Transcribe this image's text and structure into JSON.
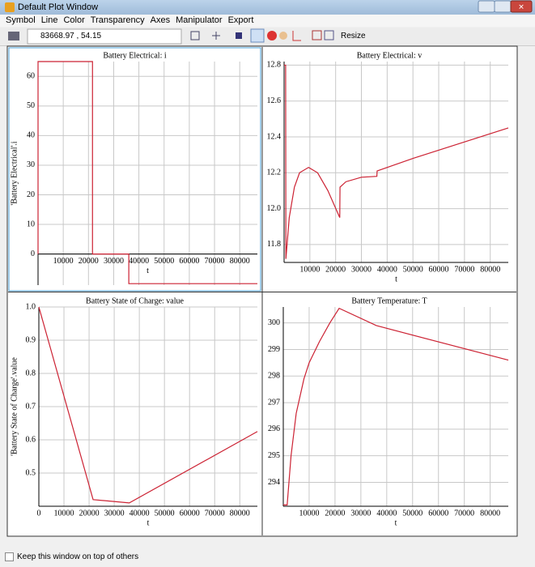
{
  "window": {
    "title": "Default Plot Window",
    "menu": [
      "Symbol",
      "Line",
      "Color",
      "Transparency",
      "Axes",
      "Manipulator",
      "Export"
    ],
    "coords": "83668.97 , 54.15",
    "resize": "Resize",
    "keep_on_top": "Keep this window on top of others"
  },
  "chart_data": [
    {
      "type": "line",
      "title": "Battery Electrical: i",
      "y_label": "'Battery Electrical'.i",
      "x_label": "t",
      "color": "#cc2233",
      "grid": true,
      "x": [
        0,
        0,
        21600,
        21600,
        36000,
        36000,
        87000
      ],
      "values": [
        0,
        65,
        65,
        0,
        0,
        -10,
        -10
      ],
      "xlim": [
        0,
        87000
      ],
      "ylim": [
        -10.5,
        65
      ],
      "xticks": [
        10000,
        20000,
        30000,
        40000,
        50000,
        60000,
        70000,
        80000
      ],
      "yticks": [
        0,
        10,
        20,
        30,
        40,
        50,
        60
      ]
    },
    {
      "type": "line",
      "title": "Battery Electrical: v",
      "x_label": "t",
      "color": "#cc2233",
      "grid": true,
      "x": [
        0,
        600,
        700,
        2000,
        4000,
        6000,
        9500,
        13000,
        17000,
        21600,
        21700,
        24000,
        30000,
        36000,
        36100,
        50000,
        87000
      ],
      "values": [
        12.8,
        12.8,
        11.72,
        11.95,
        12.12,
        12.2,
        12.23,
        12.2,
        12.1,
        11.95,
        12.12,
        12.15,
        12.175,
        12.18,
        12.21,
        12.28,
        12.45
      ],
      "xlim": [
        0,
        87000
      ],
      "ylim": [
        11.7,
        12.82
      ],
      "xticks": [
        10000,
        20000,
        30000,
        40000,
        50000,
        60000,
        70000,
        80000
      ],
      "yticks": [
        11.8,
        {
          "value": 12,
          "label": "12.0"
        },
        12.2,
        12.4,
        12.6,
        12.8
      ]
    },
    {
      "type": "line",
      "title": "Battery State of Charge: value",
      "y_label": "'Battery State of Charge'.value",
      "x_label": "t",
      "color": "#cc2233",
      "grid": true,
      "x": [
        0,
        21600,
        36000,
        87000
      ],
      "values": [
        1.0,
        0.42,
        0.41,
        0.625
      ],
      "xlim": [
        0,
        87000
      ],
      "ylim": [
        0.4,
        1.0
      ],
      "xticks": [
        0,
        10000,
        20000,
        30000,
        40000,
        50000,
        60000,
        70000,
        80000
      ],
      "yticks": [
        0.5,
        0.6,
        0.7,
        0.8,
        0.9,
        {
          "value": 1,
          "label": "1.0"
        }
      ]
    },
    {
      "type": "line",
      "title": "Battery Temperature: T",
      "x_label": "t",
      "color": "#cc2233",
      "grid": true,
      "x": [
        0,
        1500,
        3000,
        5000,
        8000,
        10000,
        14000,
        18000,
        21600,
        36000,
        87000
      ],
      "values": [
        293.15,
        293.15,
        295,
        296.6,
        297.9,
        298.5,
        299.3,
        300,
        300.55,
        299.9,
        298.6
      ],
      "xlim": [
        0,
        87000
      ],
      "ylim": [
        293.1,
        300.6
      ],
      "xticks": [
        10000,
        20000,
        30000,
        40000,
        50000,
        60000,
        70000,
        80000
      ],
      "yticks": [
        294,
        295,
        296,
        297,
        298,
        299,
        300
      ]
    }
  ]
}
